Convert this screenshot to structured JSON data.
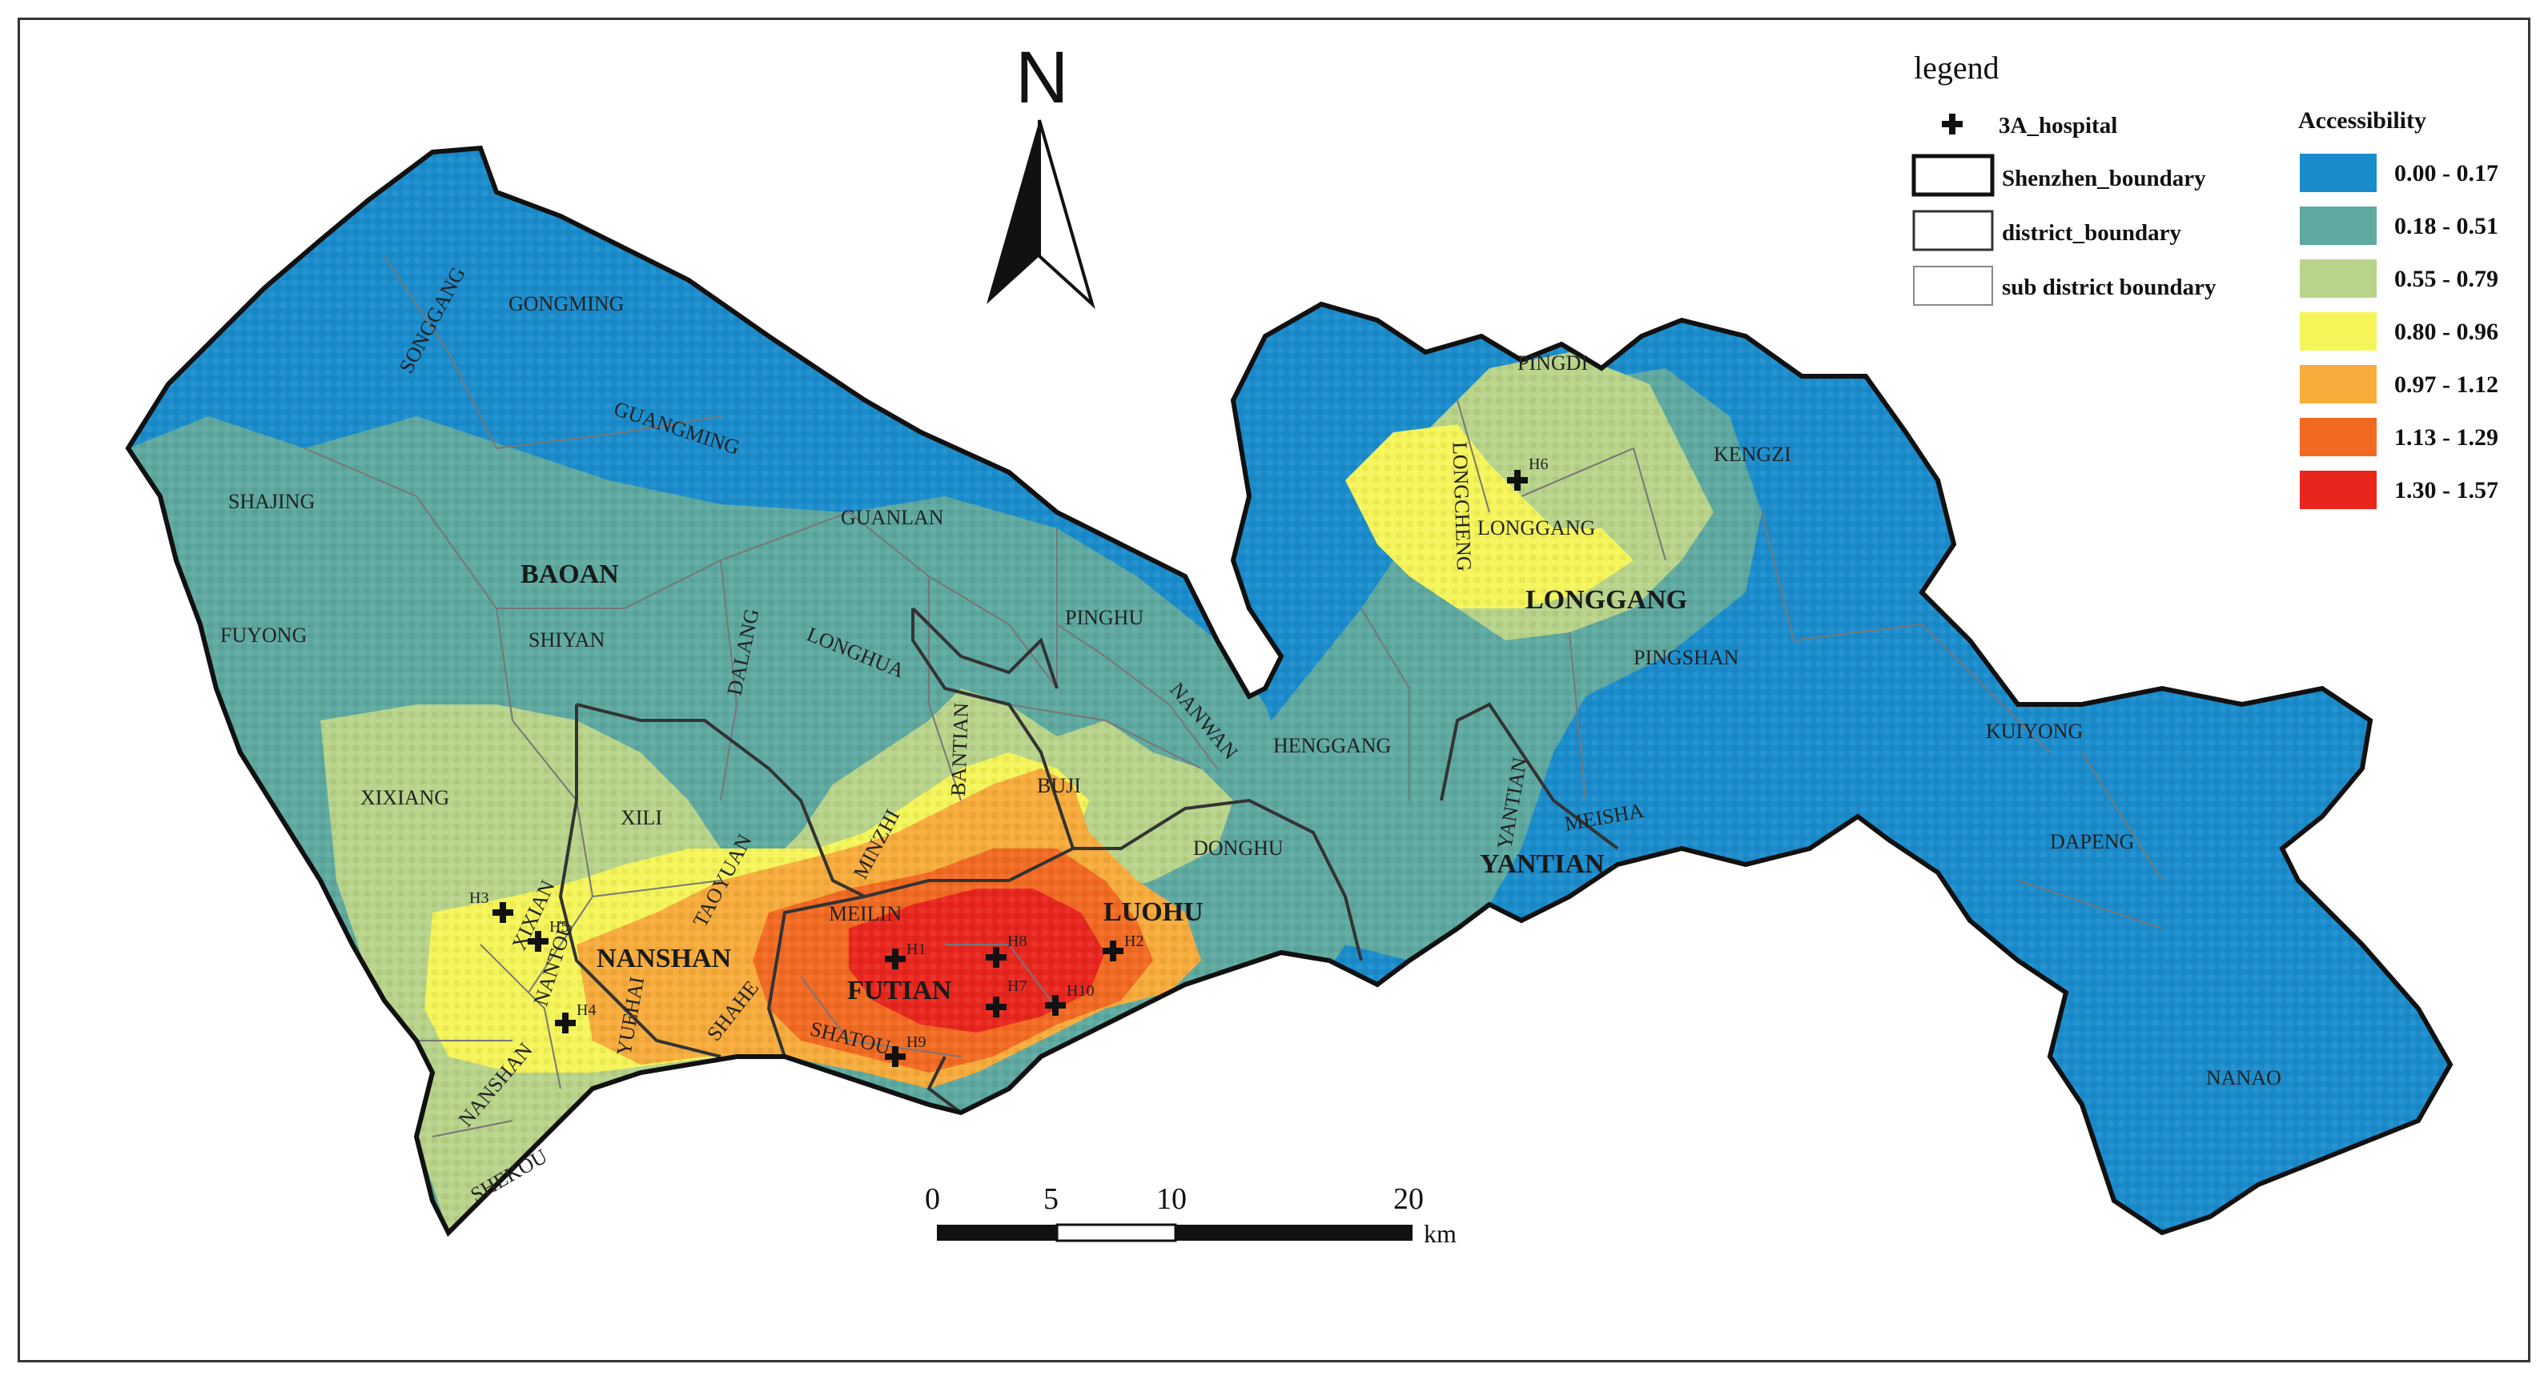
{
  "north_arrow": {
    "label": "N"
  },
  "scale_bar": {
    "ticks": [
      "0",
      "5",
      "10",
      "20"
    ],
    "unit": "km"
  },
  "legend": {
    "title": "legend",
    "symbols": [
      {
        "label": "3A_hospital",
        "kind": "cross-icon"
      },
      {
        "label": "Shenzhen_boundary",
        "kind": "thick-box"
      },
      {
        "label": "district_boundary",
        "kind": "medium-box"
      },
      {
        "label": "sub district boundary",
        "kind": "thin-box"
      }
    ],
    "accessibility_title": "Accessibility",
    "classes": [
      {
        "label": "0.00 - 0.17",
        "color": "#1a8ccc"
      },
      {
        "label": "0.18 - 0.51",
        "color": "#5ea9a0"
      },
      {
        "label": "0.55 - 0.79",
        "color": "#b8d48a"
      },
      {
        "label": "0.80 - 0.96",
        "color": "#f5f55a"
      },
      {
        "label": "0.97 - 1.12",
        "color": "#f7ac3c"
      },
      {
        "label": "1.13 - 1.29",
        "color": "#f26a22"
      },
      {
        "label": "1.30 - 1.57",
        "color": "#e8261e"
      }
    ]
  },
  "districts": [
    "BAOAN",
    "NANSHAN",
    "FUTIAN",
    "LUOHU",
    "LONGGANG",
    "YANTIAN"
  ],
  "subdistricts": [
    "SONGGANG",
    "GONGMING",
    "GUANGMING",
    "SHAJING",
    "GUANLAN",
    "FUYONG",
    "SHIYAN",
    "DALANG",
    "LONGHUA",
    "PINGHU",
    "BANTIAN",
    "NANWAN",
    "XIXIANG",
    "XILI",
    "MINZHI",
    "BUJI",
    "HENGGANG",
    "TAOYUAN",
    "DONGHU",
    "XIXIAN",
    "NANTOU",
    "MEILIN",
    "SHAHE",
    "YUEHAI",
    "SHATOU",
    "NANSHAN",
    "SHEKOU",
    "PINGDI",
    "LONGCHENG",
    "KENGZI",
    "LONGGANG",
    "PINGSHAN",
    "KUIYONG",
    "YANTIAN",
    "MEISHA",
    "DAPENG",
    "NANAO"
  ],
  "hospitals": [
    "H1",
    "H2",
    "H3",
    "H4",
    "H5",
    "H6",
    "H7",
    "H8",
    "H9",
    "H10"
  ]
}
